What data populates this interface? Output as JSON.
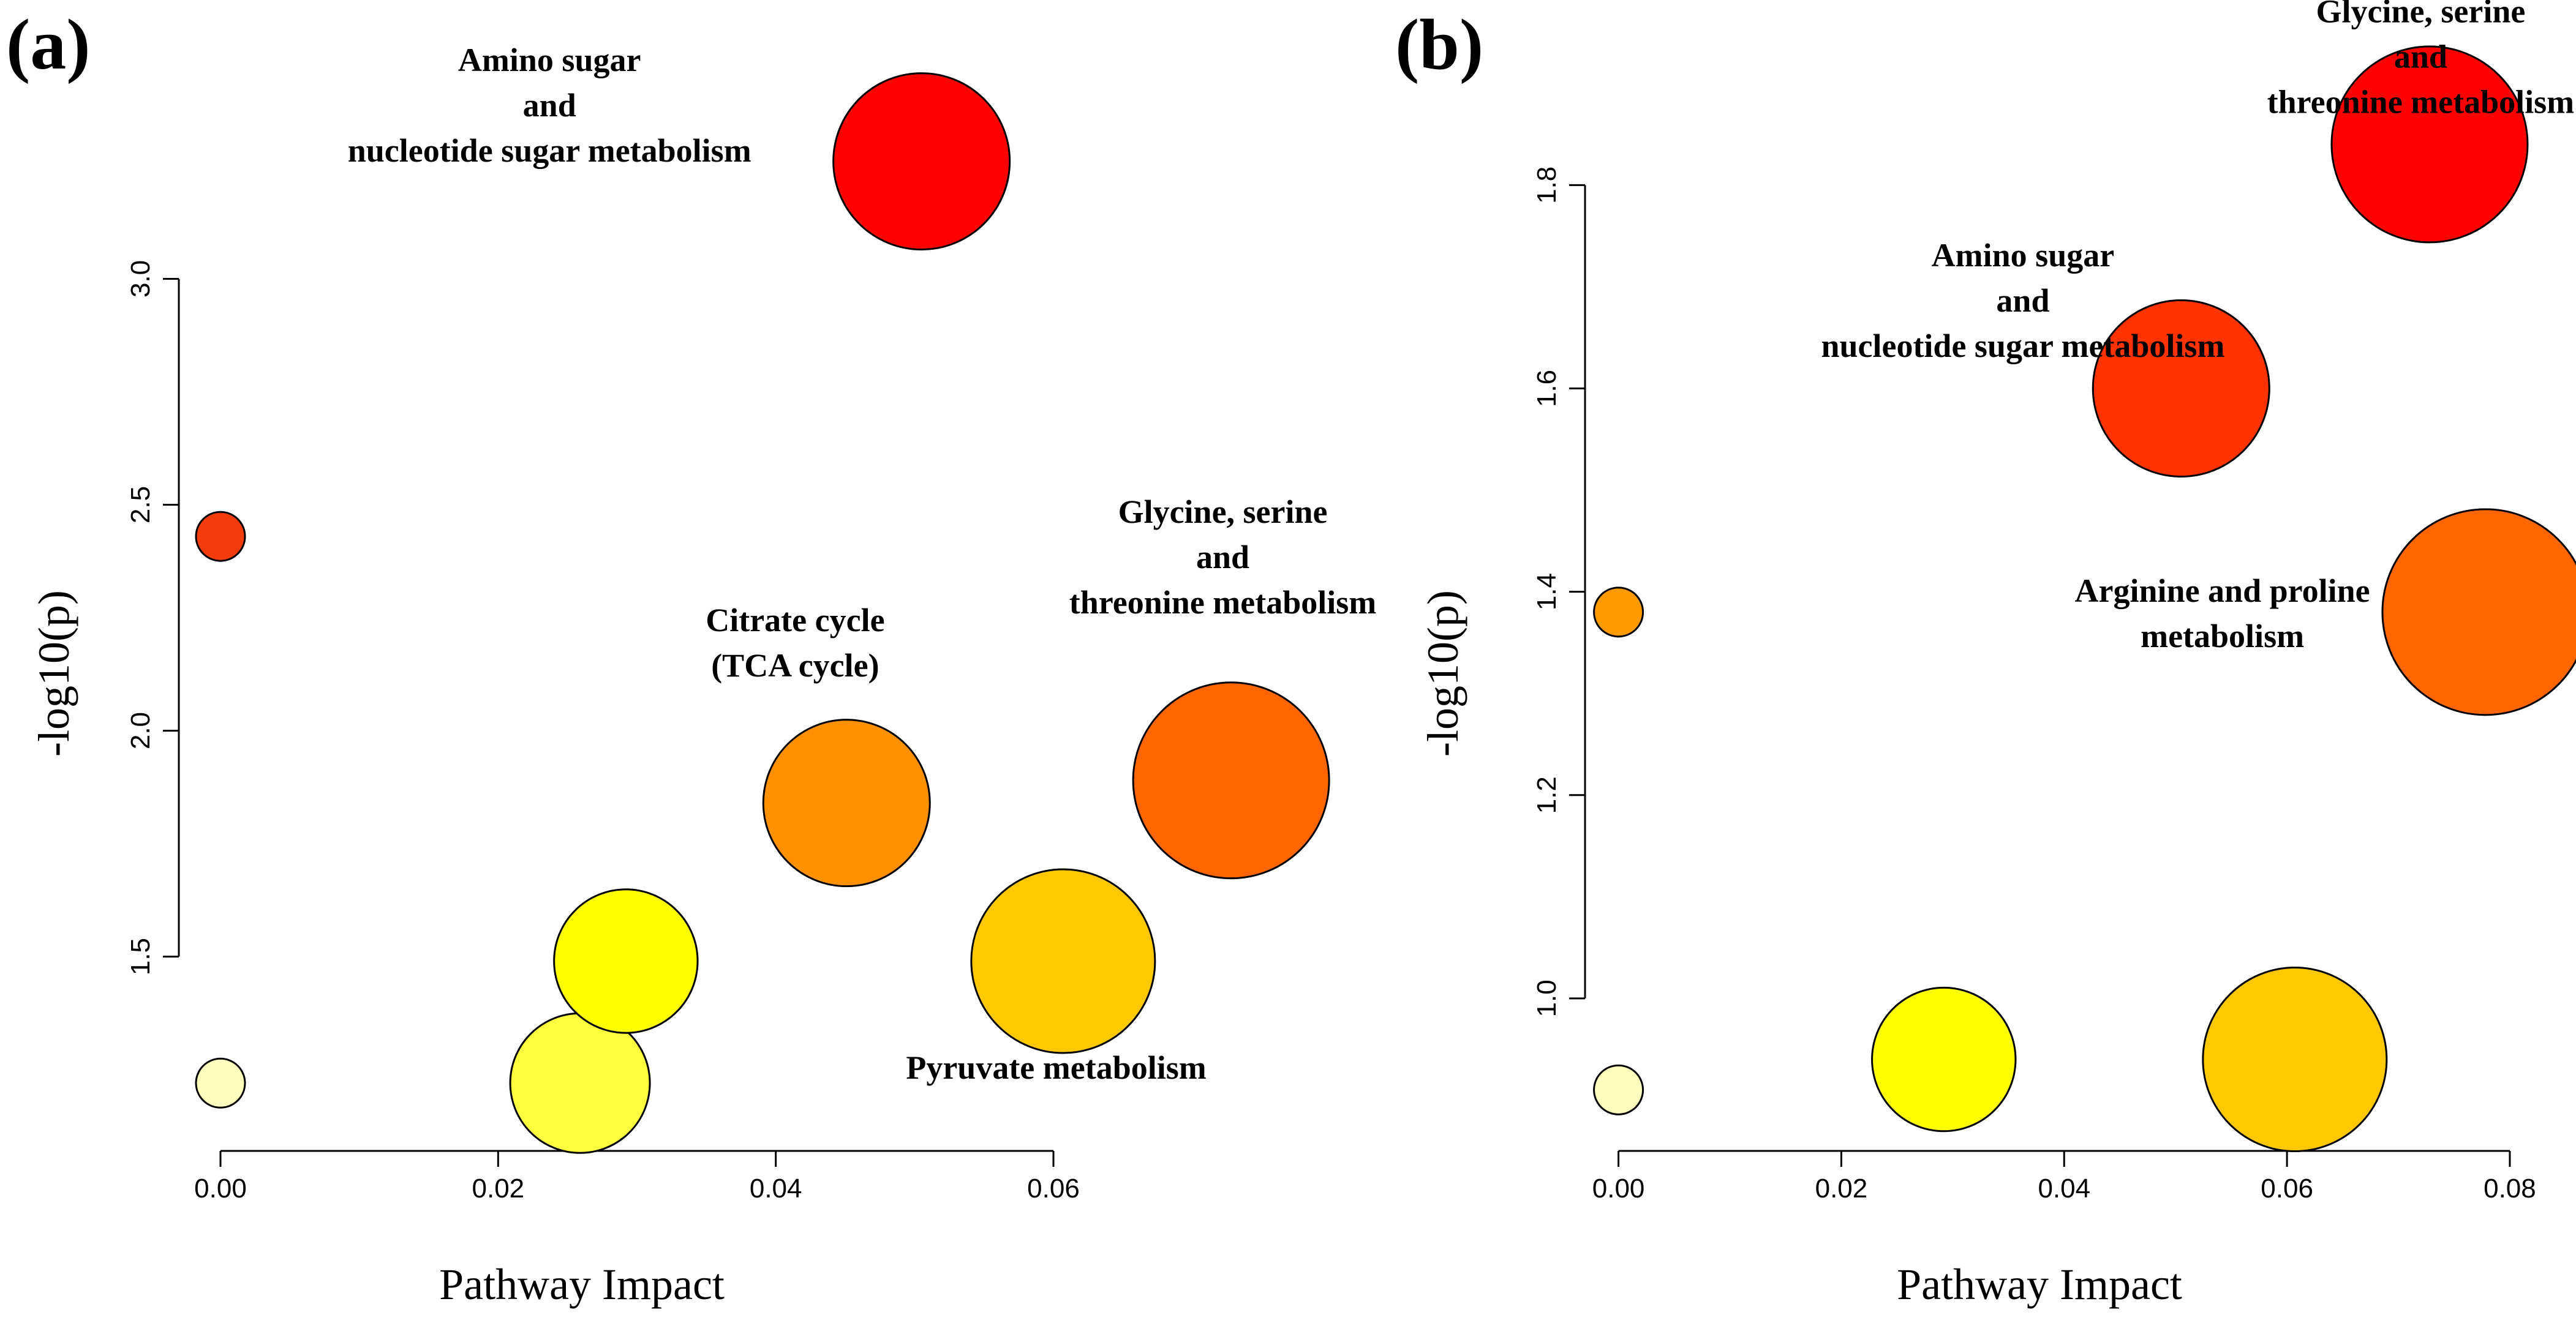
{
  "chart_data": [
    {
      "type": "scatter",
      "panel_label": "(a)",
      "xlabel": "Pathway Impact",
      "ylabel": "-log10(p)",
      "xlim": [
        -0.003,
        0.081
      ],
      "ylim": [
        1.07,
        3.59
      ],
      "xticks": [
        0.0,
        0.02,
        0.04,
        0.06
      ],
      "xtick_labels": [
        "0.00",
        "0.02",
        "0.04",
        "0.06"
      ],
      "yticks": [
        1.5,
        2.0,
        2.5,
        3.0
      ],
      "ytick_labels": [
        "1.5",
        "2.0",
        "2.5",
        "3.0"
      ],
      "points": [
        {
          "x": 0.0,
          "y": 2.43,
          "size": 1.0,
          "color": "#F23C0C"
        },
        {
          "x": 0.0,
          "y": 1.22,
          "size": 1.0,
          "color": "#FFFFBE"
        },
        {
          "x": 0.0259,
          "y": 1.22,
          "size": 2.85,
          "color": "#FFFF40"
        },
        {
          "x": 0.0292,
          "y": 1.49,
          "size": 2.93,
          "color": "#FFFF00"
        },
        {
          "x": 0.0451,
          "y": 1.84,
          "size": 3.4,
          "color": "#FF9000"
        },
        {
          "x": 0.0505,
          "y": 3.26,
          "size": 3.6,
          "color": "#FF0000"
        },
        {
          "x": 0.0607,
          "y": 1.49,
          "size": 3.75,
          "color": "#FFC800"
        },
        {
          "x": 0.0728,
          "y": 1.89,
          "size": 4.0,
          "color": "#FF6600"
        }
      ],
      "annotations": [
        {
          "lines": [
            "Amino sugar",
            "and",
            "nucleotide sugar metabolism"
          ],
          "x": 0.0237,
          "y": 3.46
        },
        {
          "lines": [
            "Citrate cycle",
            "(TCA cycle)"
          ],
          "x": 0.0414,
          "y": 2.22
        },
        {
          "lines": [
            "Glycine, serine",
            "and",
            "threonine metabolism"
          ],
          "x": 0.0722,
          "y": 2.46
        },
        {
          "lines": [
            "Pyruvate metabolism"
          ],
          "x": 0.0602,
          "y": 1.23
        }
      ]
    },
    {
      "type": "scatter",
      "panel_label": "(b)",
      "xlabel": "Pathway Impact",
      "ylabel": "-log10(p)",
      "xlim": [
        -0.003,
        0.0855
      ],
      "ylim": [
        0.85,
        1.97
      ],
      "xticks": [
        0.0,
        0.02,
        0.04,
        0.06,
        0.08
      ],
      "xtick_labels": [
        "0.00",
        "0.02",
        "0.04",
        "0.06",
        "0.08"
      ],
      "yticks": [
        1.0,
        1.2,
        1.4,
        1.6,
        1.8
      ],
      "ytick_labels": [
        "1.0",
        "1.2",
        "1.4",
        "1.6",
        "1.8"
      ],
      "points": [
        {
          "x": 0.0,
          "y": 1.38,
          "size": 1.0,
          "color": "#FF9A00"
        },
        {
          "x": 0.0,
          "y": 0.91,
          "size": 1.0,
          "color": "#FFFFBE"
        },
        {
          "x": 0.0292,
          "y": 0.94,
          "size": 2.93,
          "color": "#FFFF00"
        },
        {
          "x": 0.0505,
          "y": 1.6,
          "size": 3.6,
          "color": "#FF3300"
        },
        {
          "x": 0.0607,
          "y": 0.94,
          "size": 3.75,
          "color": "#FFC800"
        },
        {
          "x": 0.0728,
          "y": 1.84,
          "size": 4.0,
          "color": "#FF0000"
        },
        {
          "x": 0.0778,
          "y": 1.38,
          "size": 4.2,
          "color": "#FF6600"
        }
      ],
      "annotations": [
        {
          "lines": [
            "Glycine, serine",
            "and",
            "threonine metabolism"
          ],
          "x": 0.072,
          "y": 1.96
        },
        {
          "lines": [
            "Amino sugar",
            "and",
            "nucleotide sugar metabolism"
          ],
          "x": 0.0363,
          "y": 1.72
        },
        {
          "lines": [
            "Arginine and proline",
            "metabolism"
          ],
          "x": 0.0542,
          "y": 1.39
        }
      ]
    }
  ]
}
